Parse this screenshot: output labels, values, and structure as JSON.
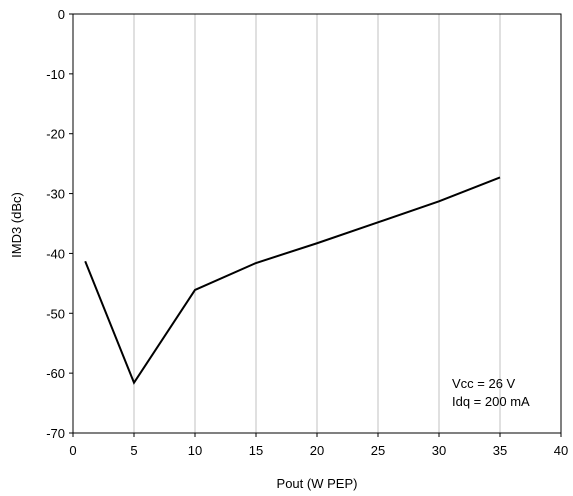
{
  "chart_data": {
    "type": "line",
    "title": "",
    "xlabel": "Pout  (W PEP)",
    "ylabel": "IMD3 (dBc)",
    "xlim": [
      0,
      40
    ],
    "ylim": [
      -70,
      0
    ],
    "x_ticks": [
      0,
      5,
      10,
      15,
      20,
      25,
      30,
      35,
      40
    ],
    "y_ticks": [
      0,
      -10,
      -20,
      -30,
      -40,
      -50,
      -60,
      -70
    ],
    "grid": "vertical",
    "series": [
      {
        "x": [
          1,
          5,
          10,
          15,
          20,
          25,
          30,
          35
        ],
        "y": [
          -41.3,
          -61.6,
          -46.1,
          -41.6,
          -38.3,
          -34.8,
          -31.3,
          -27.3
        ]
      }
    ],
    "annotations": [
      {
        "text": "Vcc = 26 V"
      },
      {
        "text": "Idq = 200 mA"
      }
    ],
    "colors": {
      "line": "#000000",
      "grid": "#c0c0c0",
      "frame": "#000000"
    }
  }
}
